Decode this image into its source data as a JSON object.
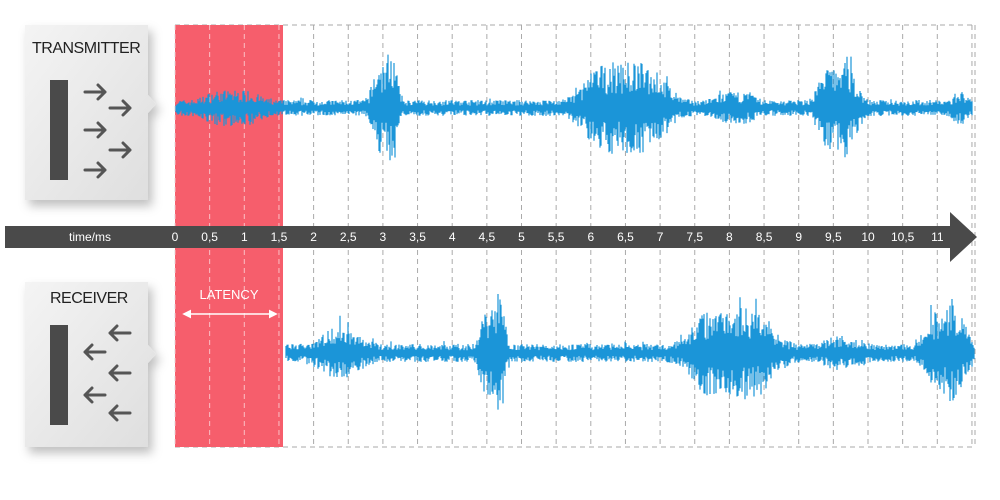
{
  "transmitter": {
    "label": "TRANSMITTER"
  },
  "receiver": {
    "label": "RECEIVER"
  },
  "latency": {
    "label": "LATENCY"
  },
  "axis": {
    "label": "time/ms",
    "ticks": [
      "0",
      "0,5",
      "1",
      "1,5",
      "2",
      "2,5",
      "3",
      "3,5",
      "4",
      "4,5",
      "5",
      "5,5",
      "6",
      "6,5",
      "7",
      "7,5",
      "8",
      "8,5",
      "9",
      "9,5",
      "10",
      "10,5",
      "11"
    ]
  }
}
